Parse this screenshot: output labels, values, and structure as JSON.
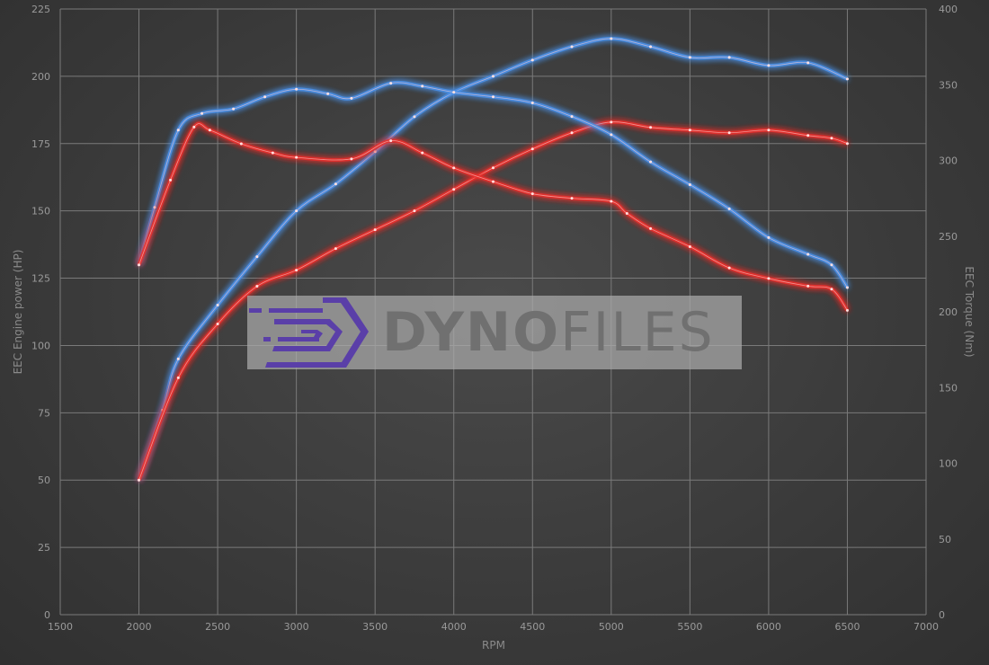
{
  "chart_data": {
    "type": "line",
    "xlabel": "RPM",
    "ylabel": "EEC Engine power (HP)",
    "y2label": "EEC Torque (Nm)",
    "xlim": [
      1500,
      7000
    ],
    "ylim": [
      0,
      225
    ],
    "y2lim": [
      0,
      400
    ],
    "xticks": [
      1500,
      2000,
      2500,
      3000,
      3500,
      4000,
      4500,
      5000,
      5500,
      6000,
      6500,
      7000
    ],
    "yticks": [
      0,
      25,
      50,
      75,
      100,
      125,
      150,
      175,
      200,
      225
    ],
    "y2ticks": [
      0,
      50,
      100,
      150,
      200,
      250,
      300,
      350,
      400
    ],
    "grid": true,
    "colors": {
      "tuned": "#4a90e8",
      "stock": "#e8302c"
    },
    "series": [
      {
        "axis": "left",
        "color": "#4a90e8",
        "x": [
          2000,
          2150,
          2250,
          2500,
          2750,
          3000,
          3250,
          3500,
          3750,
          4000,
          4250,
          4500,
          4750,
          5000,
          5250,
          5500,
          5750,
          6000,
          6250,
          6500
        ],
        "values": [
          50,
          76,
          95,
          115,
          133,
          150,
          160,
          172,
          185,
          194,
          200,
          206,
          211,
          214,
          211,
          207,
          207,
          204,
          205,
          199
        ]
      },
      {
        "axis": "left",
        "color": "#e8302c",
        "x": [
          2000,
          2250,
          2500,
          2750,
          3000,
          3250,
          3500,
          3750,
          4000,
          4250,
          4500,
          4750,
          5000,
          5250,
          5500,
          5750,
          6000,
          6250,
          6400,
          6500
        ],
        "values": [
          50,
          88,
          108,
          122,
          128,
          136,
          143,
          150,
          158,
          166,
          173,
          179,
          183,
          181,
          180,
          179,
          180,
          178,
          177,
          175
        ]
      },
      {
        "axis": "right",
        "color": "#4a90e8",
        "x": [
          2000,
          2100,
          2250,
          2400,
          2600,
          2800,
          3000,
          3200,
          3350,
          3600,
          3800,
          4000,
          4250,
          4500,
          4750,
          5000,
          5250,
          5500,
          5750,
          6000,
          6250,
          6400,
          6500
        ],
        "values": [
          231,
          269,
          320,
          331,
          334,
          342,
          347,
          344,
          341,
          351,
          349,
          345,
          342,
          338,
          329,
          317,
          299,
          284,
          268,
          249,
          238,
          231,
          216
        ]
      },
      {
        "axis": "right",
        "color": "#e8302c",
        "x": [
          2000,
          2200,
          2350,
          2450,
          2650,
          2850,
          3000,
          3350,
          3600,
          3800,
          4000,
          4250,
          4500,
          4750,
          5000,
          5100,
          5250,
          5500,
          5750,
          6000,
          6250,
          6400,
          6500
        ],
        "values": [
          231,
          287,
          322,
          320,
          311,
          305,
          302,
          301,
          313,
          305,
          295,
          286,
          278,
          275,
          273,
          265,
          255,
          243,
          229,
          222,
          217,
          215,
          201
        ]
      }
    ]
  },
  "watermark": {
    "text_bold": "DYNO",
    "text_light": "FILES",
    "color": "#5a3fa8"
  }
}
